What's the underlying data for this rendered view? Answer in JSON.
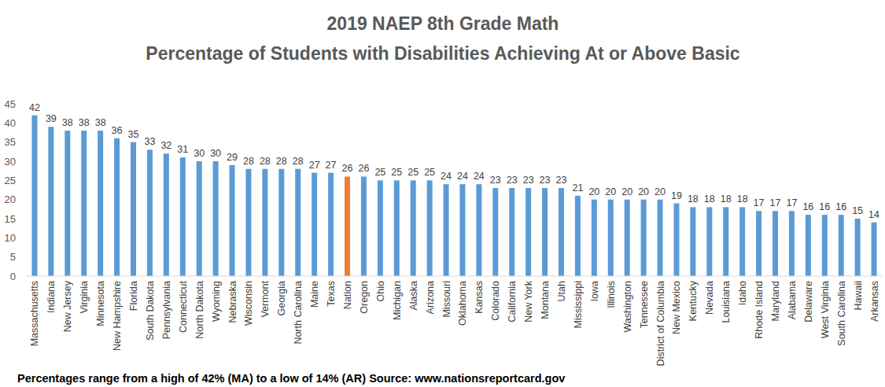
{
  "chart_data": {
    "type": "bar",
    "title": "2019 NAEP 8th Grade Math",
    "subtitle": "Percentage of Students with Disabilities Achieving At or Above Basic",
    "annotations": [
      "Percentages range from a high of 42% (MA) to a low of 14% (AR)  Source: www.nationsreportcard.gov"
    ],
    "categories": [
      "Massachusetts",
      "Indiana",
      "New Jersey",
      "Virginia",
      "Minnesota",
      "New Hampshire",
      "Florida",
      "South Dakota",
      "Pennsylvania",
      "Connecticut",
      "North Dakota",
      "Wyoming",
      "Nebraska",
      "Wisconsin",
      "Vermont",
      "Georgia",
      "North Carolina",
      "Maine",
      "Texas",
      "Nation",
      "Oregon",
      "Ohio",
      "Michigan",
      "Alaska",
      "Arizona",
      "Missouri",
      "Oklahoma",
      "Kansas",
      "Colorado",
      "California",
      "New York",
      "Montana",
      "Utah",
      "Mississippi",
      "Iowa",
      "Illinois",
      "Washington",
      "Tennessee",
      "District of Columbia",
      "New Mexico",
      "Kentucky",
      "Nevada",
      "Louisiana",
      "Idaho",
      "Rhode Island",
      "Maryland",
      "Alabama",
      "Delaware",
      "West Virginia",
      "South Carolina",
      "Hawaii",
      "Arkansas"
    ],
    "values": [
      42,
      39,
      38,
      38,
      38,
      36,
      35,
      33,
      32,
      31,
      30,
      30,
      29,
      28,
      28,
      28,
      28,
      27,
      27,
      26,
      26,
      25,
      25,
      25,
      25,
      24,
      24,
      24,
      23,
      23,
      23,
      23,
      23,
      21,
      20,
      20,
      20,
      20,
      20,
      19,
      18,
      18,
      18,
      18,
      17,
      17,
      17,
      16,
      16,
      16,
      15,
      14
    ],
    "colors": [
      "#5b9bd5",
      "#5b9bd5",
      "#5b9bd5",
      "#5b9bd5",
      "#5b9bd5",
      "#5b9bd5",
      "#5b9bd5",
      "#5b9bd5",
      "#5b9bd5",
      "#5b9bd5",
      "#5b9bd5",
      "#5b9bd5",
      "#5b9bd5",
      "#5b9bd5",
      "#5b9bd5",
      "#5b9bd5",
      "#5b9bd5",
      "#5b9bd5",
      "#5b9bd5",
      "#ed7d31",
      "#5b9bd5",
      "#5b9bd5",
      "#5b9bd5",
      "#5b9bd5",
      "#5b9bd5",
      "#5b9bd5",
      "#5b9bd5",
      "#5b9bd5",
      "#5b9bd5",
      "#5b9bd5",
      "#5b9bd5",
      "#5b9bd5",
      "#5b9bd5",
      "#5b9bd5",
      "#5b9bd5",
      "#5b9bd5",
      "#5b9bd5",
      "#5b9bd5",
      "#5b9bd5",
      "#5b9bd5",
      "#5b9bd5",
      "#5b9bd5",
      "#5b9bd5",
      "#5b9bd5",
      "#5b9bd5",
      "#5b9bd5",
      "#5b9bd5",
      "#5b9bd5",
      "#5b9bd5",
      "#5b9bd5",
      "#5b9bd5",
      "#5b9bd5"
    ],
    "ylim": [
      0,
      45
    ],
    "yticks": [
      0,
      5,
      10,
      15,
      20,
      25,
      30,
      35,
      40,
      45
    ],
    "grid": false,
    "data_labels": true
  }
}
